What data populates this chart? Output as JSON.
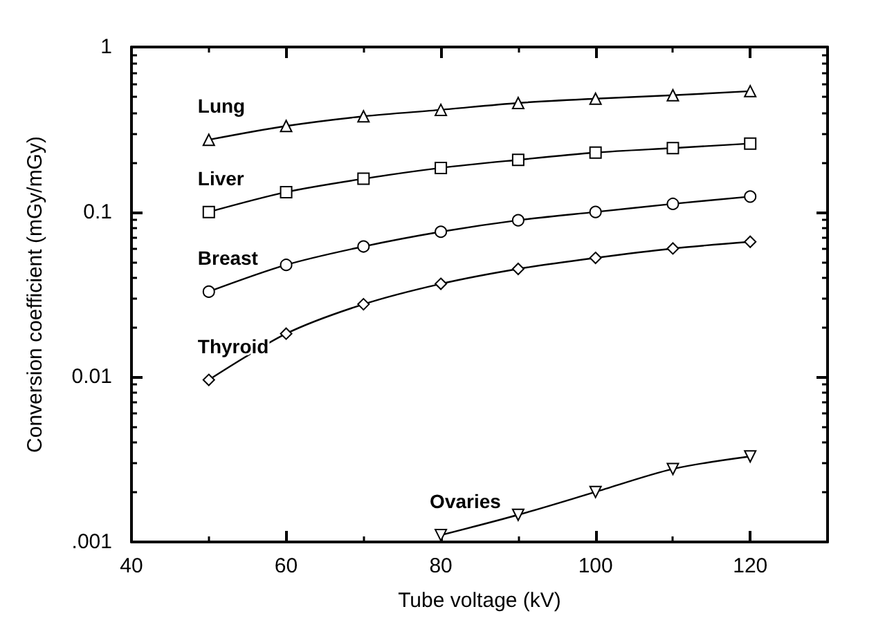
{
  "chart_data": {
    "type": "line",
    "xlabel": "Tube voltage (kV)",
    "ylabel": "Conversion coefficient (mGy/mGy)",
    "log": "y",
    "xlim": [
      40,
      130
    ],
    "xticks": [
      40,
      60,
      80,
      100,
      120
    ],
    "ylim": [
      0.001,
      1
    ],
    "yticks": [
      {
        "value": 0.001,
        "label": ".001"
      },
      0.01,
      0.1,
      1
    ],
    "grid": false,
    "legend": false,
    "line_style": "solid",
    "series": [
      {
        "name": "Lung",
        "color": "#000000",
        "marker": "triangle",
        "x": [
          50,
          60,
          70,
          80,
          90,
          100,
          110,
          120
        ],
        "values": [
          0.274,
          0.332,
          0.38,
          0.416,
          0.458,
          0.486,
          0.51,
          0.54
        ]
      },
      {
        "name": "Liver",
        "color": "#000000",
        "marker": "square",
        "x": [
          50,
          60,
          70,
          80,
          90,
          100,
          110,
          120
        ],
        "values": [
          0.1,
          0.132,
          0.159,
          0.185,
          0.207,
          0.229,
          0.244,
          0.26
        ]
      },
      {
        "name": "Breast",
        "color": "#000000",
        "marker": "circle",
        "x": [
          50,
          60,
          70,
          80,
          90,
          100,
          110,
          120
        ],
        "values": [
          0.0329,
          0.0478,
          0.0618,
          0.0759,
          0.0891,
          0.1,
          0.112,
          0.124
        ]
      },
      {
        "name": "Thyroid",
        "color": "#000000",
        "marker": "diamond",
        "x": [
          50,
          60,
          70,
          80,
          90,
          100,
          110,
          120
        ],
        "values": [
          0.0096,
          0.0183,
          0.0276,
          0.0367,
          0.0452,
          0.0527,
          0.0601,
          0.066
        ]
      },
      {
        "name": "Ovaries",
        "color": "#000000",
        "marker": "triangle-down",
        "x": [
          80,
          90,
          100,
          110,
          120
        ],
        "values": [
          0.0011,
          0.00146,
          0.00201,
          0.00277,
          0.0033
        ]
      }
    ]
  }
}
